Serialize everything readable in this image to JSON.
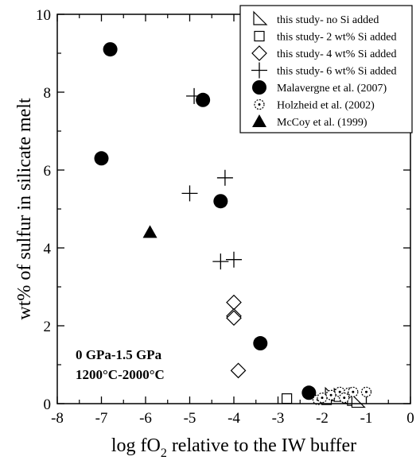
{
  "chart_data": {
    "type": "scatter",
    "xlabel": "log fO",
    "xlabel_sub": "2",
    "xlabel_rest": " relative to the IW buffer",
    "ylabel": "wt% of sulfur in silicate melt",
    "xlim": [
      -8,
      0
    ],
    "ylim": [
      0,
      10
    ],
    "x_ticks": [
      -8,
      -7,
      -6,
      -5,
      -4,
      -3,
      -2,
      -1,
      0
    ],
    "y_ticks": [
      0,
      2,
      4,
      6,
      8,
      10
    ],
    "x_tick_labels": [
      "-8",
      "-7",
      "-6",
      "-5",
      "-4",
      "-3",
      "-2",
      "-1",
      "0"
    ],
    "y_tick_labels": [
      "0",
      "2",
      "4",
      "6",
      "8",
      "10"
    ],
    "grid": false,
    "legend_position": "top-right",
    "annotations": [
      "0 GPa-1.5 GPa",
      "1200°C-2000°C"
    ],
    "series": [
      {
        "name": "this study- no Si added",
        "marker": "triangle-open",
        "points": [
          [
            -1.8,
            0.22
          ],
          [
            -1.6,
            0.2
          ],
          [
            -1.4,
            0.15
          ],
          [
            -1.3,
            0.1
          ],
          [
            -1.2,
            0.05
          ]
        ]
      },
      {
        "name": "this study- 2 wt% Si added",
        "marker": "square-open",
        "points": [
          [
            -2.8,
            0.13
          ],
          [
            -1.9,
            0.1
          ]
        ]
      },
      {
        "name": "this study- 4 wt% Si added",
        "marker": "diamond-open",
        "points": [
          [
            -4.0,
            2.6
          ],
          [
            -4.0,
            2.25
          ],
          [
            -4.0,
            2.2
          ],
          [
            -3.9,
            0.85
          ]
        ]
      },
      {
        "name": "this study- 6 wt% Si added",
        "marker": "plus",
        "points": [
          [
            -4.9,
            7.9
          ],
          [
            -4.2,
            5.8
          ],
          [
            -5.0,
            5.4
          ],
          [
            -4.3,
            3.65
          ],
          [
            -4.0,
            3.7
          ]
        ]
      },
      {
        "name": "Malavergne et al. (2007)",
        "marker": "circle-filled",
        "points": [
          [
            -6.8,
            9.1
          ],
          [
            -4.7,
            7.8
          ],
          [
            -7.0,
            6.3
          ],
          [
            -4.3,
            5.2
          ],
          [
            -3.4,
            1.55
          ],
          [
            -2.3,
            0.28
          ]
        ]
      },
      {
        "name": "Holzheid et al. (2002)",
        "marker": "circle-dotted",
        "points": [
          [
            -2.1,
            0.1
          ],
          [
            -2.0,
            0.15
          ],
          [
            -1.8,
            0.22
          ],
          [
            -1.6,
            0.3
          ],
          [
            -1.4,
            0.28
          ],
          [
            -1.3,
            0.3
          ],
          [
            -1.0,
            0.3
          ],
          [
            -1.5,
            0.15
          ]
        ]
      },
      {
        "name": "McCoy et al. (1999)",
        "marker": "triangle-filled",
        "points": [
          [
            -5.9,
            4.4
          ]
        ]
      }
    ]
  }
}
